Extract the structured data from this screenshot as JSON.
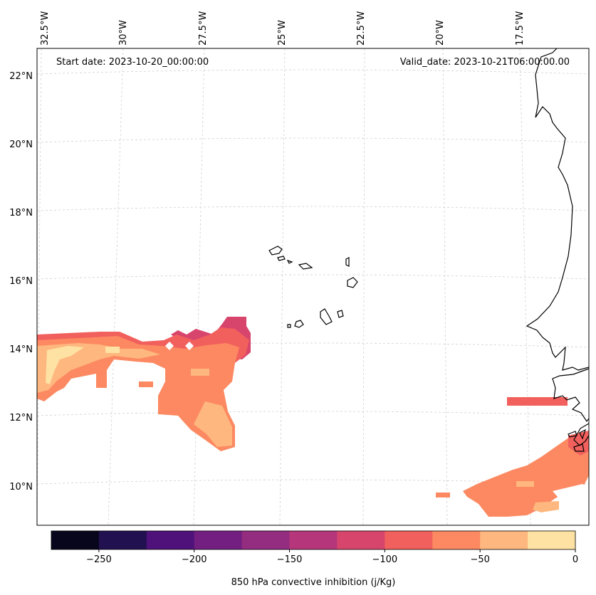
{
  "map": {
    "start_date": "Start date: 2023-10-20_00:00:00",
    "valid_date": "Valid_date: 2023-10-21T06:00:00.00",
    "lon_labels": [
      "32.5°W",
      "30°W",
      "27.5°W",
      "25°W",
      "22.5°W",
      "20°W",
      "17.5°W"
    ],
    "lat_labels": [
      "22°N",
      "20°N",
      "18°N",
      "16°N",
      "14°N",
      "12°N",
      "10°N"
    ],
    "coastline_color": "#000000",
    "gridline_color": "#cccccc"
  },
  "colorbar": {
    "label": "850 hPa convective inhibition (j/Kg)",
    "tick_labels": [
      "−250",
      "−200",
      "−150",
      "−100",
      "−50",
      "0"
    ],
    "bins": [
      {
        "from": -275,
        "to": -250,
        "color": "#07061c"
      },
      {
        "from": -250,
        "to": -225,
        "color": "#221150"
      },
      {
        "from": -225,
        "to": -200,
        "color": "#4f127b"
      },
      {
        "from": -200,
        "to": -175,
        "color": "#731f81"
      },
      {
        "from": -175,
        "to": -150,
        "color": "#942c80"
      },
      {
        "from": -150,
        "to": -125,
        "color": "#b5367a"
      },
      {
        "from": -125,
        "to": -100,
        "color": "#d8456c"
      },
      {
        "from": -100,
        "to": -75,
        "color": "#f1605d"
      },
      {
        "from": -75,
        "to": -50,
        "color": "#fc8961"
      },
      {
        "from": -50,
        "to": -25,
        "color": "#feb77e"
      },
      {
        "from": -25,
        "to": 0,
        "color": "#fde2a3"
      }
    ]
  }
}
